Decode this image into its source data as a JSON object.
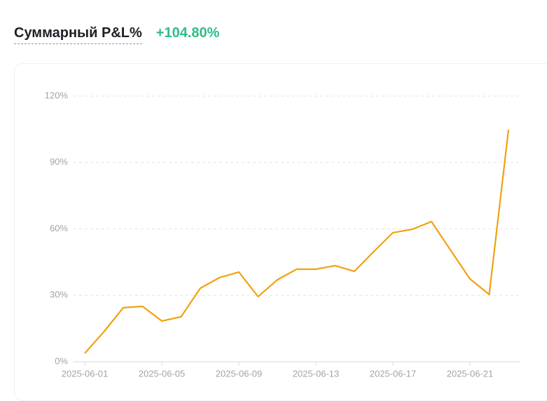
{
  "header": {
    "title": "Суммарный P&L%",
    "value": "+104.80%"
  },
  "chart_data": {
    "type": "line",
    "x": [
      "2025-06-01",
      "2025-06-02",
      "2025-06-03",
      "2025-06-04",
      "2025-06-05",
      "2025-06-06",
      "2025-06-07",
      "2025-06-08",
      "2025-06-09",
      "2025-06-10",
      "2025-06-11",
      "2025-06-12",
      "2025-06-13",
      "2025-06-14",
      "2025-06-15",
      "2025-06-16",
      "2025-06-17",
      "2025-06-18",
      "2025-06-19",
      "2025-06-20",
      "2025-06-21",
      "2025-06-22",
      "2025-06-23"
    ],
    "values": [
      3.8,
      13.6,
      24.4,
      25.0,
      18.4,
      20.3,
      33.2,
      38.0,
      40.5,
      29.4,
      37.0,
      41.8,
      41.8,
      43.4,
      40.8,
      49.7,
      58.3,
      59.8,
      63.3,
      50.3,
      37.4,
      30.4,
      104.8
    ],
    "color": "#f0a20f",
    "xticks": [
      "2025-06-01",
      "2025-06-05",
      "2025-06-09",
      "2025-06-13",
      "2025-06-17",
      "2025-06-21"
    ],
    "ylim": [
      0,
      120
    ],
    "yticks": [
      {
        "value": 0,
        "label": "0%"
      },
      {
        "value": 30,
        "label": "30%"
      },
      {
        "value": 60,
        "label": "60%"
      },
      {
        "value": 90,
        "label": "90%"
      },
      {
        "value": 120,
        "label": "120%"
      }
    ],
    "grid": true
  }
}
